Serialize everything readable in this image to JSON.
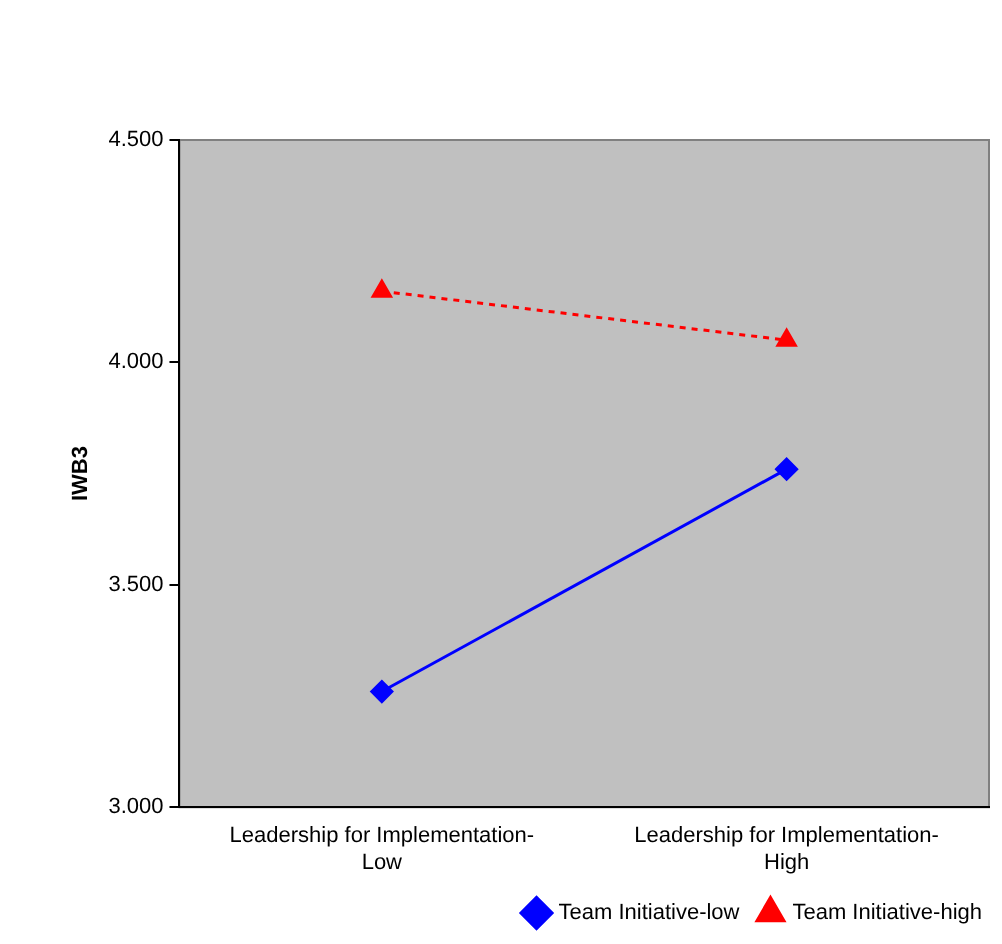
{
  "chart_data": {
    "type": "line",
    "ylabel": "IWB3",
    "categories": [
      "Leadership for Implementation-Low",
      "Leadership for Implementation-High"
    ],
    "series": [
      {
        "name": "Team Initiative-low",
        "color": "#0000ff",
        "values": [
          3.26,
          3.76
        ],
        "marker": "diamond",
        "line_style": "solid"
      },
      {
        "name": "Team Initiative-high",
        "color": "#ff0000",
        "values": [
          4.16,
          4.05
        ],
        "marker": "triangle",
        "line_style": "dotted"
      }
    ],
    "ylim": [
      3,
      4.5
    ],
    "yticks": [
      {
        "value": 3,
        "label": "3.000"
      },
      {
        "value": 3.5,
        "label": "3.500"
      },
      {
        "value": 4,
        "label": "4.000"
      },
      {
        "value": 4.5,
        "label": "4.500"
      }
    ],
    "grid": false,
    "legend": "bottom right"
  }
}
